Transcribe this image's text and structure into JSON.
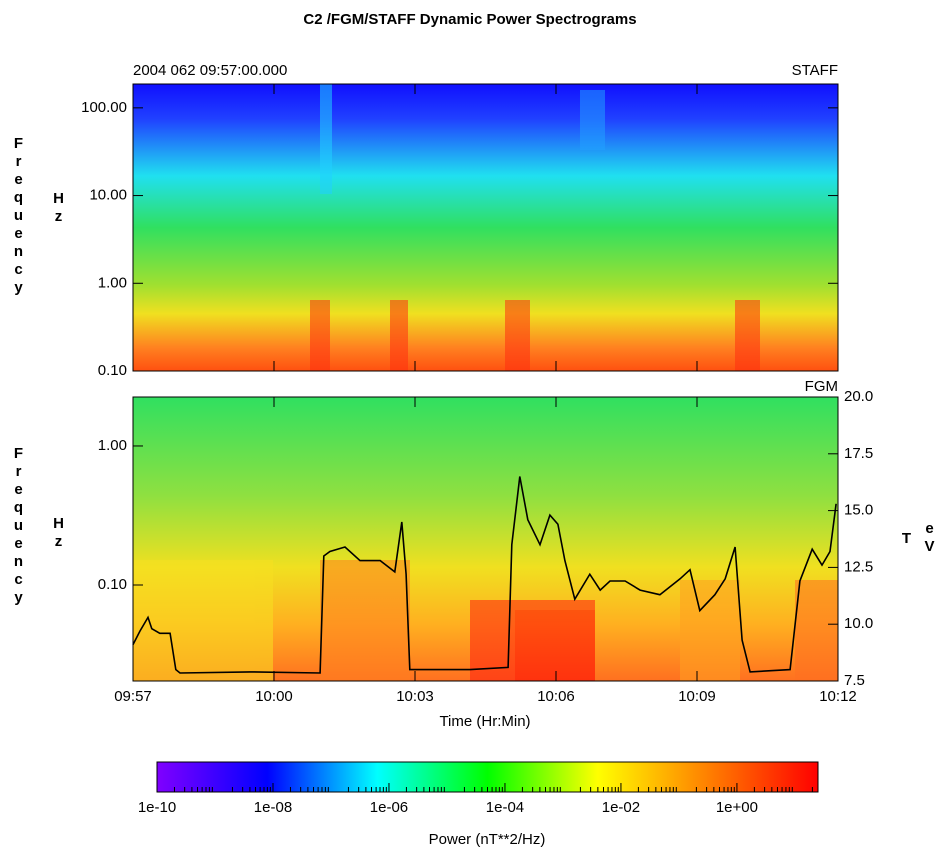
{
  "title": "C2 /FGM/STAFF   Dynamic Power Spectrograms",
  "chart_data": [
    {
      "type": "heatmap",
      "date_label": "2004 062 09:57:00.000",
      "panel_label": "STAFF",
      "ylabel": "Frequency",
      "yunit": "Hz",
      "log_y": true,
      "ylim": [
        0.1,
        187
      ],
      "yticks": [
        {
          "value": 0.1,
          "label": "0.10"
        },
        {
          "value": 1,
          "label": "1.00"
        },
        {
          "value": 10,
          "label": "10.00"
        },
        {
          "value": 100,
          "label": "100.00"
        }
      ]
    },
    {
      "type": "heatmap",
      "panel_label": "FGM",
      "ylabel": "Frequency",
      "yunit": "Hz",
      "log_y": true,
      "ylim": [
        0.0204,
        2.25
      ],
      "yticks": [
        {
          "value": 0.1,
          "label": "0.10"
        },
        {
          "value": 1,
          "label": "1.00"
        }
      ],
      "xlabel": "Time (Hr:Min)",
      "xlim": [
        597,
        612
      ],
      "xticks": [
        {
          "value": 597,
          "label": "09:57"
        },
        {
          "value": 600,
          "label": "10:00"
        },
        {
          "value": 603,
          "label": "10:03"
        },
        {
          "value": 606,
          "label": "10:06"
        },
        {
          "value": 609,
          "label": "10:09"
        },
        {
          "value": 612,
          "label": "10:12"
        }
      ],
      "y2label": "T",
      "y2unit": "eV",
      "y2lim": [
        7.5,
        20
      ],
      "y2ticks": [
        7.5,
        {
          "value": 10,
          "label": "10.0"
        },
        12.5,
        {
          "value": 15,
          "label": "15.0"
        },
        17.5,
        {
          "value": 20,
          "label": "20.0"
        }
      ],
      "x": [
        597.0,
        597.15,
        597.32,
        597.4,
        597.57,
        597.79,
        597.91,
        598.0,
        599.49,
        600.98,
        601.06,
        601.19,
        601.51,
        601.83,
        602.26,
        602.57,
        602.72,
        602.81,
        602.89,
        604.17,
        604.98,
        605.06,
        605.23,
        605.4,
        605.66,
        605.87,
        606.04,
        606.19,
        606.4,
        606.72,
        606.94,
        607.15,
        607.47,
        607.79,
        608.21,
        608.64,
        608.85,
        609.06,
        609.38,
        609.6,
        609.81,
        609.96,
        610.13,
        610.98,
        611.19,
        611.45,
        611.66,
        611.83,
        611.96
      ],
      "series": [
        {
          "color": "#000000",
          "axis": "y2",
          "values": [
            9.1,
            9.7,
            10.3,
            9.8,
            9.6,
            9.6,
            8.0,
            7.85,
            7.9,
            7.85,
            13.0,
            13.2,
            13.4,
            12.8,
            12.8,
            12.3,
            14.5,
            12.2,
            8.0,
            8.0,
            8.1,
            13.5,
            16.5,
            14.6,
            13.5,
            14.8,
            14.4,
            12.8,
            11.1,
            12.2,
            11.5,
            11.9,
            11.9,
            11.5,
            11.3,
            12.0,
            12.4,
            10.6,
            11.3,
            12.0,
            13.4,
            9.3,
            7.9,
            8.0,
            11.9,
            13.3,
            12.6,
            13.2,
            15.3
          ]
        }
      ]
    }
  ],
  "colorbar": {
    "label": "Power (nT**2/Hz)",
    "log": true,
    "lim": [
      1e-10,
      25
    ],
    "ticks": [
      {
        "value": 1e-10,
        "label": "1e-10"
      },
      {
        "value": 1e-08,
        "label": "1e-08"
      },
      {
        "value": 1e-06,
        "label": "1e-06"
      },
      {
        "value": 0.0001,
        "label": "1e-04"
      },
      {
        "value": 0.01,
        "label": "1e-02"
      },
      {
        "value": 1,
        "label": "1e+00"
      }
    ],
    "colors": [
      "#8000ff",
      "#0000ff",
      "#00ffff",
      "#00ff00",
      "#ffff00",
      "#ff8000",
      "#ff0000"
    ]
  }
}
